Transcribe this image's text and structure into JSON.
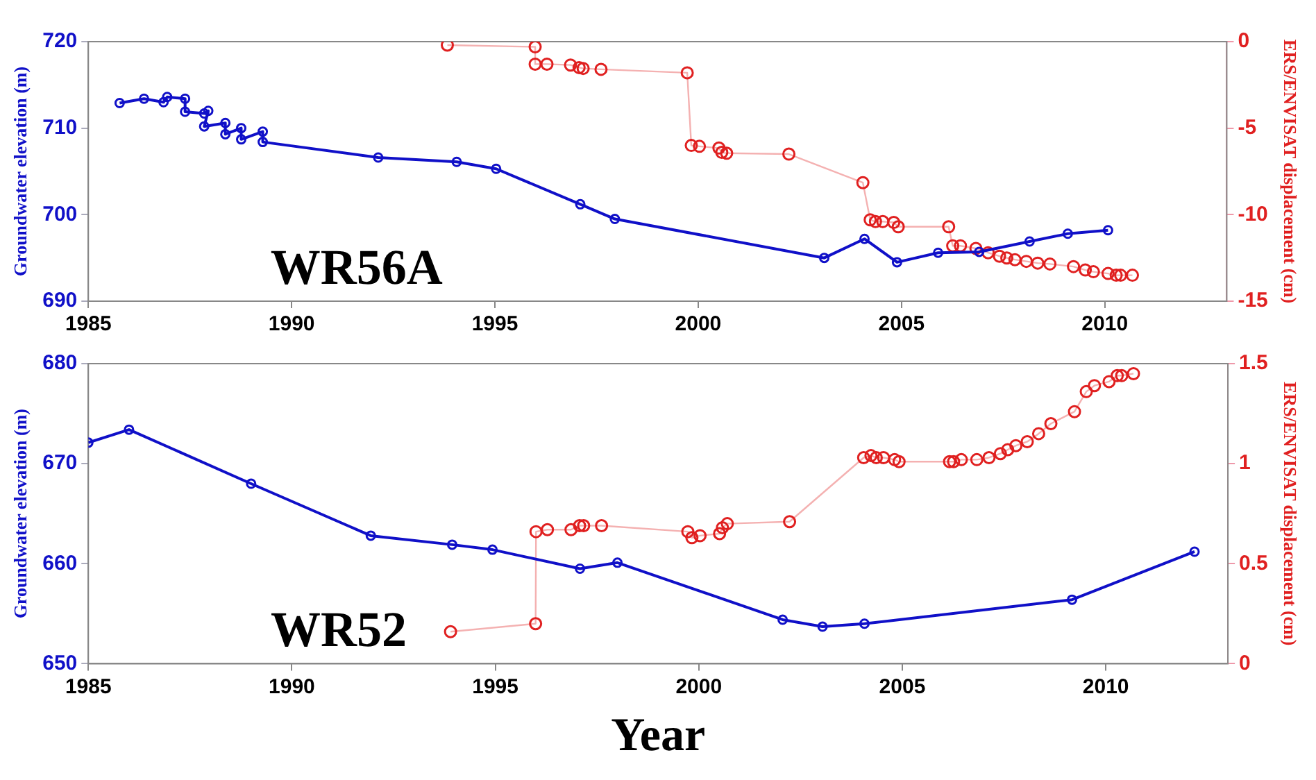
{
  "chart_data": [
    {
      "type": "line",
      "ylabel": "Groundwater elevation (m)",
      "y2label": "ERS/ENVISAT displacement (cm)",
      "annotations": [
        "WR56A"
      ],
      "xlim": [
        1985,
        2013
      ],
      "xticks": [
        1985,
        1990,
        1995,
        2000,
        2005,
        2010
      ],
      "ylim": [
        690,
        720
      ],
      "yticks": [
        690,
        700,
        710,
        720
      ],
      "y2lim": [
        -15,
        0
      ],
      "y2ticks": [
        -15,
        -10,
        -5,
        0
      ],
      "grid": false,
      "legend": false,
      "marker": "circle",
      "line_style": "solid",
      "series": [
        {
          "color": "#1010c8",
          "x": [
            1985.77,
            1986.37,
            1986.85,
            1986.94,
            1987.38,
            1987.38,
            1987.85,
            1987.95,
            1987.85,
            1988.37,
            1988.37,
            1988.76,
            1988.76,
            1989.29,
            1989.29,
            1992.13,
            1994.06,
            1995.03,
            1997.1,
            1997.95,
            2003.1,
            2004.09,
            2004.89,
            2005.9,
            2006.91,
            2008.15,
            2009.09,
            2010.08
          ],
          "values": [
            712.9,
            713.4,
            713.0,
            713.6,
            713.4,
            711.9,
            711.7,
            712.0,
            710.2,
            710.6,
            709.3,
            710.0,
            708.7,
            709.6,
            708.4,
            706.6,
            706.1,
            705.3,
            701.2,
            699.5,
            695.0,
            697.2,
            694.5,
            695.6,
            695.7,
            696.9,
            697.8,
            698.2
          ]
        },
        {
          "color": "#e02020",
          "axis": "y2",
          "x": [
            1993.83,
            1995.99,
            1995.99,
            1996.28,
            1996.86,
            1997.07,
            1997.17,
            1997.61,
            1999.73,
            1999.83,
            2000.03,
            2000.51,
            2000.58,
            2000.7,
            2002.23,
            2004.05,
            2004.23,
            2004.36,
            2004.54,
            2004.81,
            2004.92,
            2006.16,
            2006.26,
            2006.45,
            2006.83,
            2007.13,
            2007.41,
            2007.59,
            2007.79,
            2008.07,
            2008.35,
            2008.65,
            2009.23,
            2009.52,
            2009.72,
            2010.08,
            2010.28,
            2010.39,
            2010.68
          ],
          "values": [
            -0.2,
            -0.3,
            -1.3,
            -1.3,
            -1.35,
            -1.5,
            -1.55,
            -1.6,
            -1.8,
            -6.0,
            -6.05,
            -6.15,
            -6.4,
            -6.45,
            -6.5,
            -8.15,
            -10.3,
            -10.4,
            -10.4,
            -10.45,
            -10.7,
            -10.7,
            -11.8,
            -11.8,
            -11.95,
            -12.2,
            -12.4,
            -12.5,
            -12.6,
            -12.7,
            -12.8,
            -12.85,
            -13.0,
            -13.2,
            -13.3,
            -13.4,
            -13.5,
            -13.5,
            -13.5
          ]
        }
      ]
    },
    {
      "type": "line",
      "xlabel": "Year",
      "ylabel": "Groundwater elevation (m)",
      "y2label": "ERS/ENVISAT displacement (cm)",
      "annotations": [
        "WR52"
      ],
      "xlim": [
        1985,
        2013
      ],
      "xticks": [
        1985,
        1990,
        1995,
        2000,
        2005,
        2010
      ],
      "ylim": [
        650,
        680
      ],
      "yticks": [
        650,
        660,
        670,
        680
      ],
      "y2lim": [
        0,
        1.5
      ],
      "y2ticks": [
        0,
        0.5,
        1,
        1.5
      ],
      "grid": false,
      "legend": false,
      "marker": "circle",
      "line_style": "solid",
      "series": [
        {
          "color": "#1010c8",
          "x": [
            1985.0,
            1986.0,
            1989.0,
            1991.94,
            1993.94,
            1994.93,
            1997.08,
            1998.0,
            2002.06,
            2003.04,
            2004.07,
            2009.17,
            2012.18
          ],
          "values": [
            672.1,
            673.4,
            668.0,
            662.8,
            661.9,
            661.4,
            659.5,
            660.1,
            654.4,
            653.7,
            654.0,
            656.4,
            661.2
          ]
        },
        {
          "color": "#e02020",
          "axis": "y2",
          "x": [
            1993.9,
            1995.99,
            1996.0,
            1996.28,
            1996.86,
            1997.07,
            1997.17,
            1997.61,
            1999.73,
            1999.83,
            2000.03,
            2000.51,
            2000.58,
            2000.7,
            2002.23,
            2004.05,
            2004.23,
            2004.36,
            2004.54,
            2004.81,
            2004.92,
            2006.16,
            2006.26,
            2006.45,
            2006.83,
            2007.13,
            2007.41,
            2007.59,
            2007.79,
            2008.07,
            2008.35,
            2008.65,
            2009.23,
            2009.52,
            2009.72,
            2010.08,
            2010.28,
            2010.39,
            2010.68
          ],
          "values": [
            0.16,
            0.2,
            0.66,
            0.67,
            0.67,
            0.69,
            0.69,
            0.69,
            0.66,
            0.63,
            0.64,
            0.65,
            0.68,
            0.7,
            0.71,
            1.03,
            1.04,
            1.03,
            1.03,
            1.02,
            1.01,
            1.01,
            1.01,
            1.02,
            1.02,
            1.03,
            1.05,
            1.07,
            1.09,
            1.11,
            1.15,
            1.2,
            1.26,
            1.36,
            1.39,
            1.41,
            1.44,
            1.44,
            1.45
          ]
        }
      ]
    }
  ]
}
